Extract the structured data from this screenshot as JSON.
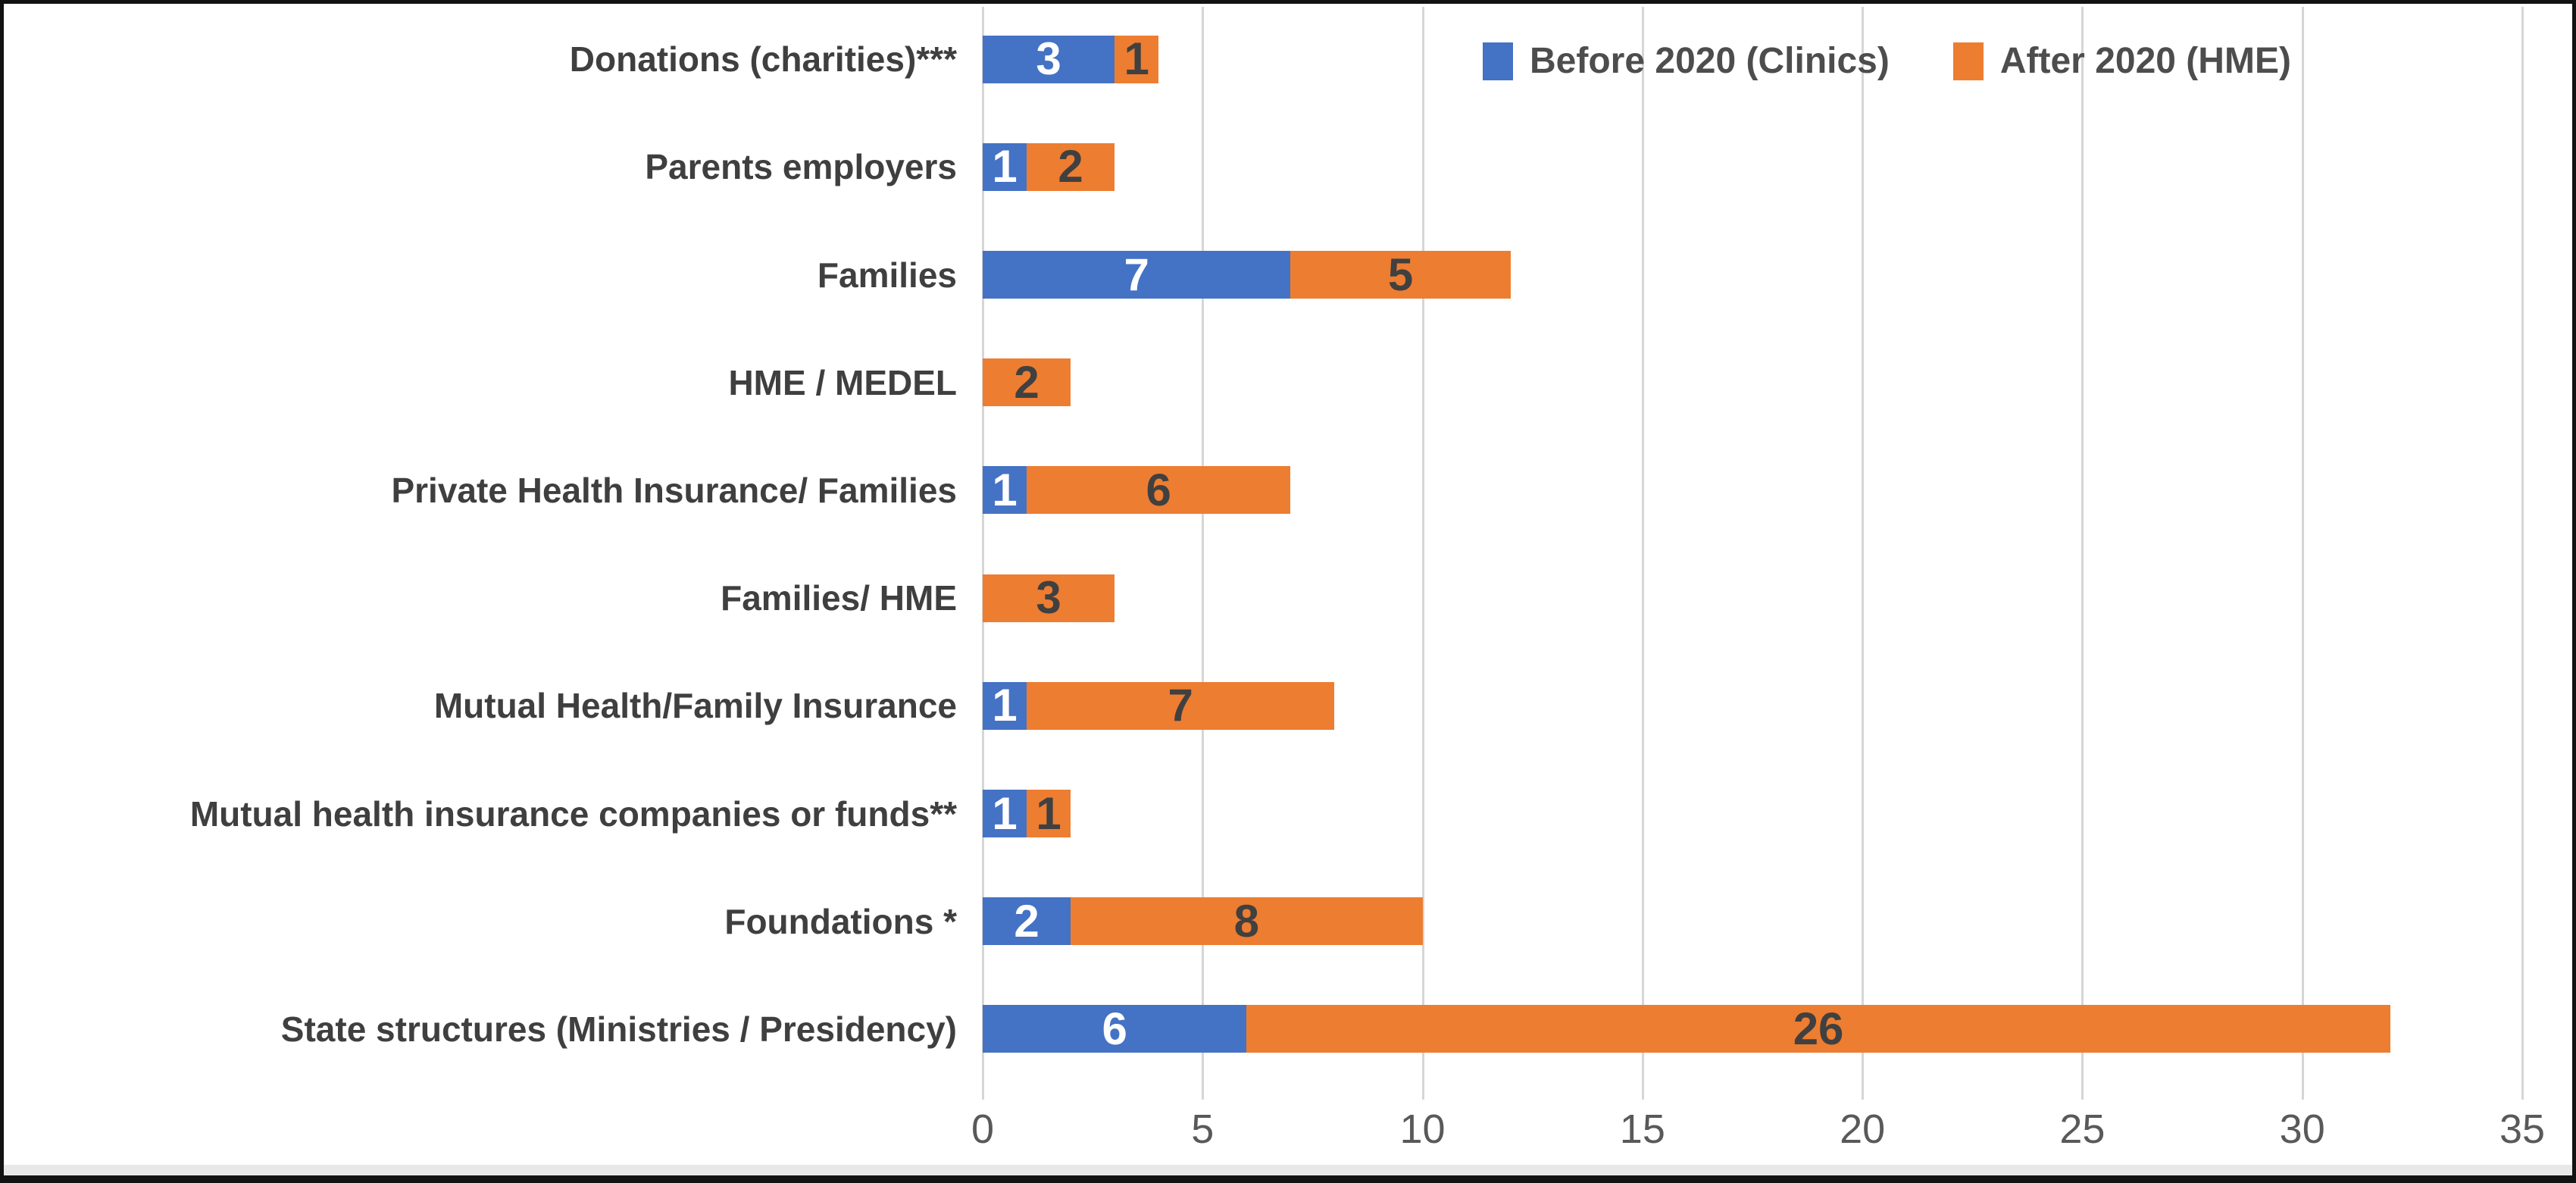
{
  "chart_data": {
    "type": "bar",
    "orientation": "horizontal",
    "stacked": true,
    "categories": [
      "Donations (charities)***",
      "Parents employers",
      "Families",
      "HME / MEDEL",
      "Private Health Insurance/ Families",
      "Families/ HME",
      "Mutual Health/Family Insurance",
      "Mutual health insurance companies or funds**",
      "Foundations *",
      "State structures (Ministries / Presidency)"
    ],
    "series": [
      {
        "name": "Before 2020 (Clinics)",
        "color": "#4472C4",
        "label_color": "#FFFFFF",
        "values": [
          3,
          1,
          7,
          0,
          1,
          0,
          1,
          1,
          2,
          6
        ]
      },
      {
        "name": "After 2020 (HME)",
        "color": "#ED7D31",
        "label_color": "#404040",
        "values": [
          1,
          2,
          5,
          2,
          6,
          3,
          7,
          1,
          8,
          26
        ]
      }
    ],
    "totals": [
      4,
      3,
      12,
      2,
      7,
      3,
      8,
      2,
      10,
      32
    ],
    "xlim": [
      0,
      35
    ],
    "x_ticks": [
      0,
      5,
      10,
      15,
      20,
      25,
      30,
      35
    ],
    "grid": "vertical",
    "legend_position": "top-right",
    "gridline_color": "#D6D6D6",
    "category_label_color": "#3F3F3F",
    "tick_label_color": "#595959"
  }
}
